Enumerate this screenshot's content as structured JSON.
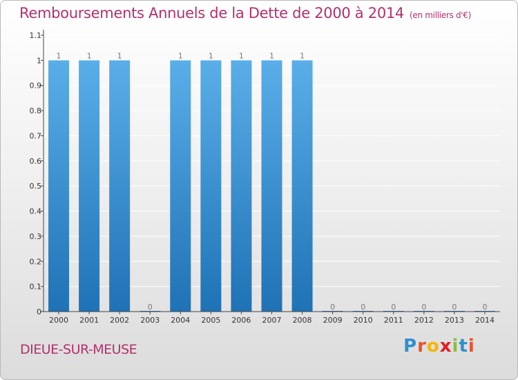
{
  "header": {
    "title": "Remboursements Annuels de la Dette de 2000 à 2014",
    "unit": "(en milliers d'€)"
  },
  "footer": {
    "commune": "DIEUE-SUR-MEUSE",
    "logo": [
      "P",
      "r",
      "o",
      "x",
      "i",
      "t",
      "i"
    ],
    "logo_colors": [
      "#2f8fd0",
      "#e8532a",
      "#f6b600",
      "#e31e24",
      "#8cbf3f",
      "#2f8fd0",
      "#e8532a"
    ]
  },
  "colors": {
    "title": "#b2306c",
    "bar_top": "#5aaee8",
    "bar_bottom": "#1f72b5",
    "axis": "#444444",
    "gridline": "#ffffff"
  },
  "chart_data": {
    "type": "bar",
    "title": "Remboursements Annuels de la Dette de 2000 à 2014",
    "subtitle": "(en milliers d'€)",
    "categories": [
      "2000",
      "2001",
      "2002",
      "2003",
      "2004",
      "2005",
      "2006",
      "2007",
      "2008",
      "2009",
      "2010",
      "2011",
      "2012",
      "2013",
      "2014"
    ],
    "values": [
      1,
      1,
      1,
      0,
      1,
      1,
      1,
      1,
      1,
      0,
      0,
      0,
      0,
      0,
      0
    ],
    "data_labels": [
      "1",
      "1",
      "1",
      "0",
      "1",
      "1",
      "1",
      "1",
      "1",
      "0",
      "0",
      "0",
      "0",
      "0",
      "0"
    ],
    "yticks": [
      "0",
      "0.1",
      "0.2",
      "0.3",
      "0.4",
      "0.5",
      "0.6",
      "0.7",
      "0.8",
      "0.9",
      "1",
      "1.1"
    ],
    "ylim": [
      0,
      1.1
    ],
    "xlabel": "",
    "ylabel": "",
    "grid": true
  }
}
